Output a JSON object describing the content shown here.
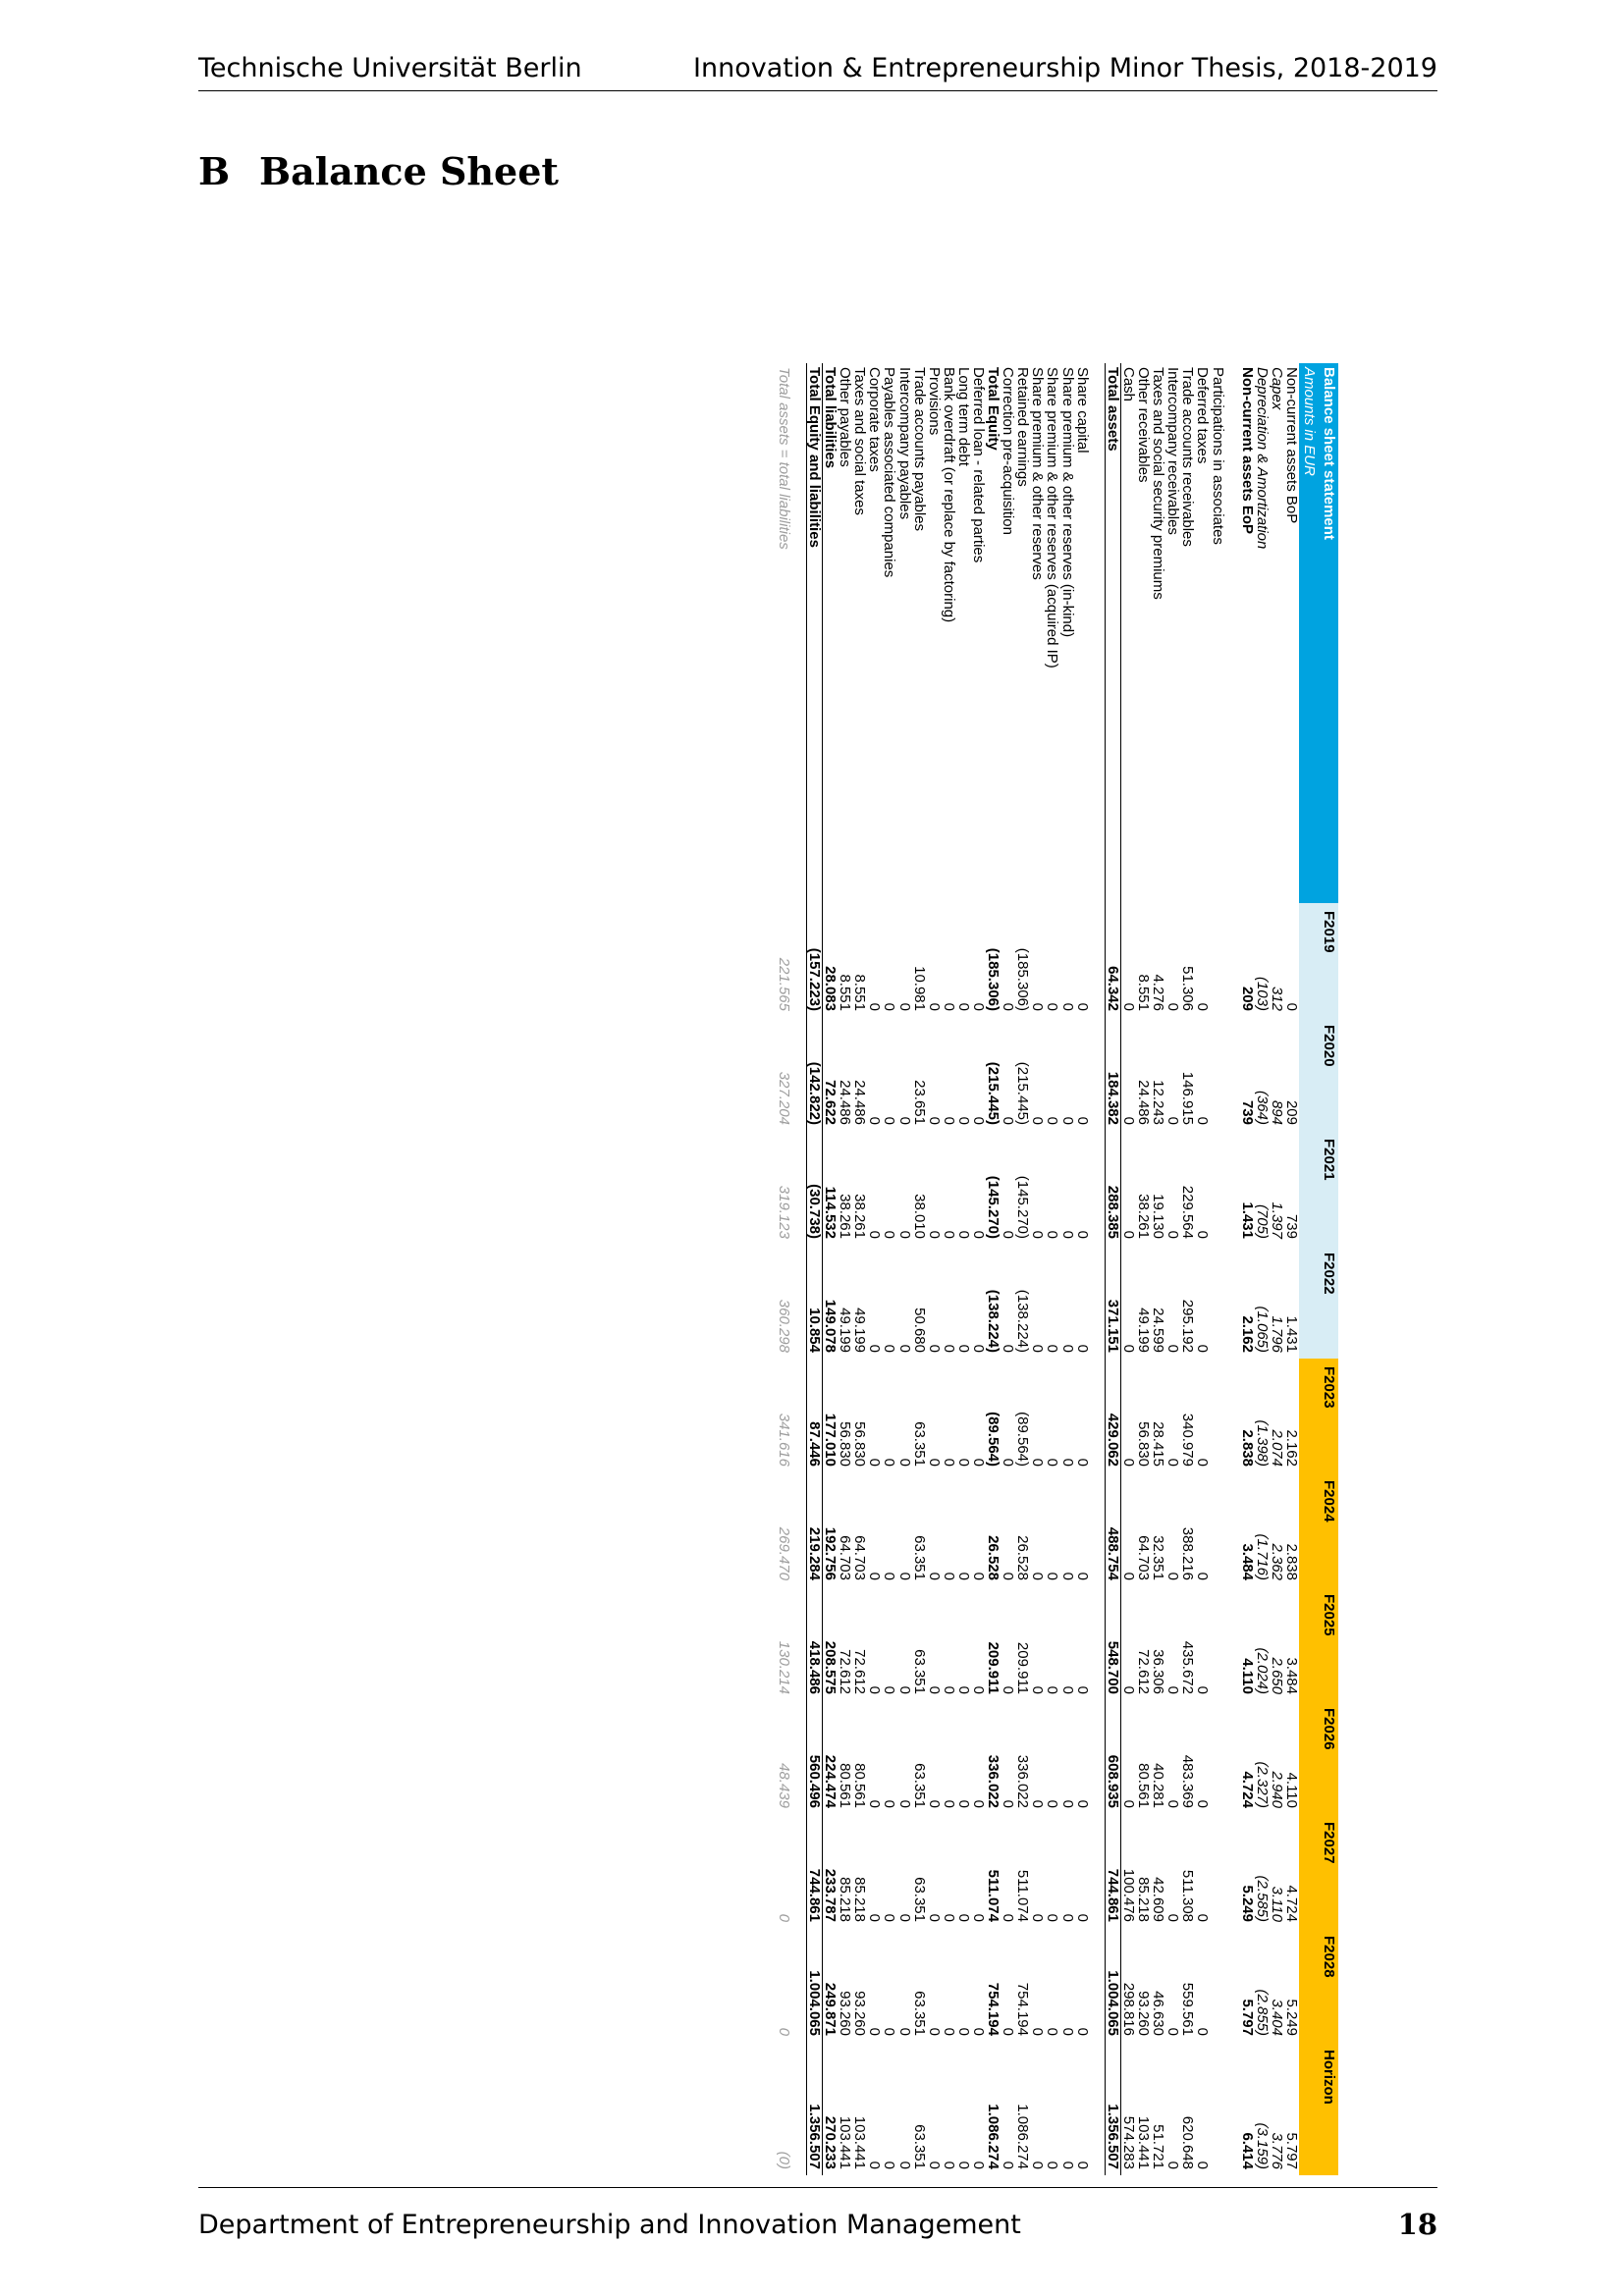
{
  "header": {
    "left": "Technische Universität Berlin",
    "right": "Innovation & Entrepreneurship Minor Thesis,  2018-2019"
  },
  "section": {
    "number": "B",
    "title": "Balance Sheet"
  },
  "table": {
    "title": "Balance sheet statement",
    "subtitle": "Amounts in EUR",
    "years": [
      "F2019",
      "F2020",
      "F2021",
      "F2022",
      "F2023",
      "F2024",
      "F2025",
      "F2026",
      "F2027",
      "F2028",
      "Horizon"
    ],
    "blocks": [
      [
        {
          "label": "Non-current assets BoP",
          "style": "",
          "values": [
            "0",
            "209",
            "739",
            "1.431",
            "2.162",
            "2.838",
            "3.484",
            "4.110",
            "4.724",
            "5.249",
            "5.797"
          ]
        },
        {
          "label": "Capex",
          "style": "it",
          "values": [
            "312",
            "894",
            "1.397",
            "1.796",
            "2.074",
            "2.362",
            "2.650",
            "2.940",
            "3.110",
            "3.404",
            "3.776"
          ]
        },
        {
          "label": "Depreciation & Amortization",
          "style": "it",
          "values": [
            "(103)",
            "(364)",
            "(705)",
            "(1.065)",
            "(1.398)",
            "(1.716)",
            "(2.024)",
            "(2.327)",
            "(2.585)",
            "(2.855)",
            "(3.159)"
          ]
        },
        {
          "label": "Non-current assets EoP",
          "style": "b",
          "values": [
            "209",
            "739",
            "1.431",
            "2.162",
            "2.838",
            "3.484",
            "4.110",
            "4.724",
            "5.249",
            "5.797",
            "6.414"
          ]
        }
      ],
      [
        {
          "label": "Participations in associates",
          "style": "",
          "values": [
            "",
            "",
            "",
            "",
            "",
            "",
            "",
            "",
            "",
            "",
            ""
          ]
        },
        {
          "label": "Deferred taxes",
          "style": "",
          "values": [
            "0",
            "0",
            "0",
            "0",
            "0",
            "0",
            "0",
            "0",
            "0",
            "0",
            "0"
          ]
        },
        {
          "label": "Trade accounts receivables",
          "style": "",
          "values": [
            "51.306",
            "146.915",
            "229.564",
            "295.192",
            "340.979",
            "388.216",
            "435.672",
            "483.369",
            "511.308",
            "559.561",
            "620.648"
          ]
        },
        {
          "label": "Intercompany receivables",
          "style": "",
          "values": [
            "0",
            "0",
            "0",
            "0",
            "0",
            "0",
            "0",
            "0",
            "0",
            "0",
            "0"
          ]
        },
        {
          "label": "Taxes and social security premiums",
          "style": "",
          "values": [
            "4.276",
            "12.243",
            "19.130",
            "24.599",
            "28.415",
            "32.351",
            "36.306",
            "40.281",
            "42.609",
            "46.630",
            "51.721"
          ]
        },
        {
          "label": "Other receivables",
          "style": "",
          "values": [
            "8.551",
            "24.486",
            "38.261",
            "49.199",
            "56.830",
            "64.703",
            "72.612",
            "80.561",
            "85.218",
            "93.260",
            "103.441"
          ]
        },
        {
          "label": "Cash",
          "style": "",
          "values": [
            "0",
            "0",
            "0",
            "0",
            "0",
            "0",
            "0",
            "0",
            "100.476",
            "298.816",
            "574.283"
          ]
        },
        {
          "label": "Total assets",
          "style": "tot",
          "values": [
            "64.342",
            "184.382",
            "288.385",
            "371.151",
            "429.062",
            "488.754",
            "548.700",
            "608.935",
            "744.861",
            "1.004.065",
            "1.356.507"
          ]
        }
      ],
      [
        {
          "label": "Share capital",
          "style": "",
          "values": [
            "0",
            "0",
            "0",
            "0",
            "0",
            "0",
            "0",
            "0",
            "0",
            "0",
            "0"
          ]
        },
        {
          "label": "Share premium & other reserves (in-kind)",
          "style": "",
          "values": [
            "0",
            "0",
            "0",
            "0",
            "0",
            "0",
            "0",
            "0",
            "0",
            "0",
            "0"
          ]
        },
        {
          "label": "Share premium & other reserves (acquired IP)",
          "style": "",
          "values": [
            "0",
            "0",
            "0",
            "0",
            "0",
            "0",
            "0",
            "0",
            "0",
            "0",
            "0"
          ]
        },
        {
          "label": "Share premium & other reserves",
          "style": "",
          "values": [
            "0",
            "0",
            "0",
            "0",
            "0",
            "0",
            "0",
            "0",
            "0",
            "0",
            "0"
          ]
        },
        {
          "label": "Retained earnings",
          "style": "",
          "values": [
            "(185.306)",
            "(215.445)",
            "(145.270)",
            "(138.224)",
            "(89.564)",
            "26.528",
            "209.911",
            "336.022",
            "511.074",
            "754.194",
            "1.086.274"
          ]
        },
        {
          "label": "Correction pre-acquisition",
          "style": "",
          "values": [
            "0",
            "0",
            "0",
            "0",
            "0",
            "0",
            "0",
            "0",
            "0",
            "0",
            "0"
          ]
        },
        {
          "label": "Total Equity",
          "style": "b",
          "values": [
            "(185.306)",
            "(215.445)",
            "(145.270)",
            "(138.224)",
            "(89.564)",
            "26.528",
            "209.911",
            "336.022",
            "511.074",
            "754.194",
            "1.086.274"
          ]
        },
        {
          "label": "Deferred loan - related parties",
          "style": "",
          "values": [
            "0",
            "0",
            "0",
            "0",
            "0",
            "0",
            "0",
            "0",
            "0",
            "0",
            "0"
          ]
        },
        {
          "label": "Long term debt",
          "style": "",
          "values": [
            "0",
            "0",
            "0",
            "0",
            "0",
            "0",
            "0",
            "0",
            "0",
            "0",
            "0"
          ]
        },
        {
          "label": "Bank overdraft (or replace by factoring)",
          "style": "",
          "values": [
            "0",
            "0",
            "0",
            "0",
            "0",
            "0",
            "0",
            "0",
            "0",
            "0",
            "0"
          ]
        },
        {
          "label": "Provisions",
          "style": "",
          "values": [
            "0",
            "0",
            "0",
            "0",
            "0",
            "0",
            "0",
            "0",
            "0",
            "0",
            "0"
          ]
        },
        {
          "label": "Trade accounts payables",
          "style": "",
          "values": [
            "10.981",
            "23.651",
            "38.010",
            "50.680",
            "63.351",
            "63.351",
            "63.351",
            "63.351",
            "63.351",
            "63.351",
            "63.351"
          ]
        },
        {
          "label": "Intercompany payables",
          "style": "",
          "values": [
            "0",
            "0",
            "0",
            "0",
            "0",
            "0",
            "0",
            "0",
            "0",
            "0",
            "0"
          ]
        },
        {
          "label": "Payables associated companies",
          "style": "",
          "values": [
            "0",
            "0",
            "0",
            "0",
            "0",
            "0",
            "0",
            "0",
            "0",
            "0",
            "0"
          ]
        },
        {
          "label": "Corporate taxes",
          "style": "",
          "values": [
            "0",
            "0",
            "0",
            "0",
            "0",
            "0",
            "0",
            "0",
            "0",
            "0",
            "0"
          ]
        },
        {
          "label": "Taxes and social taxes",
          "style": "",
          "values": [
            "8.551",
            "24.486",
            "38.261",
            "49.199",
            "56.830",
            "64.703",
            "72.612",
            "80.561",
            "85.218",
            "93.260",
            "103.441"
          ]
        },
        {
          "label": "Other payables",
          "style": "",
          "values": [
            "8.551",
            "24.486",
            "38.261",
            "49.199",
            "56.830",
            "64.703",
            "72.612",
            "80.561",
            "85.218",
            "93.260",
            "103.441"
          ]
        },
        {
          "label": "Total liabilities",
          "style": "b",
          "values": [
            "28.083",
            "72.622",
            "114.532",
            "149.078",
            "177.010",
            "192.756",
            "208.575",
            "224.474",
            "233.787",
            "249.871",
            "270.233"
          ]
        },
        {
          "label": "Total Equity and liabilities",
          "style": "tot",
          "values": [
            "(157.223)",
            "(142.822)",
            "(30.738)",
            "10.854",
            "87.446",
            "219.284",
            "418.486",
            "560.496",
            "744.861",
            "1.004.065",
            "1.356.507"
          ]
        }
      ],
      [
        {
          "label": "Total assets = total liabilities",
          "style": "check",
          "values": [
            "221.565",
            "327.204",
            "319.123",
            "360.298",
            "341.616",
            "269.470",
            "130.214",
            "48.439",
            "0",
            "0",
            "(0)"
          ]
        }
      ]
    ]
  },
  "footer": {
    "left": "Department of Entrepreneurship and Innovation Management",
    "page": "18"
  }
}
